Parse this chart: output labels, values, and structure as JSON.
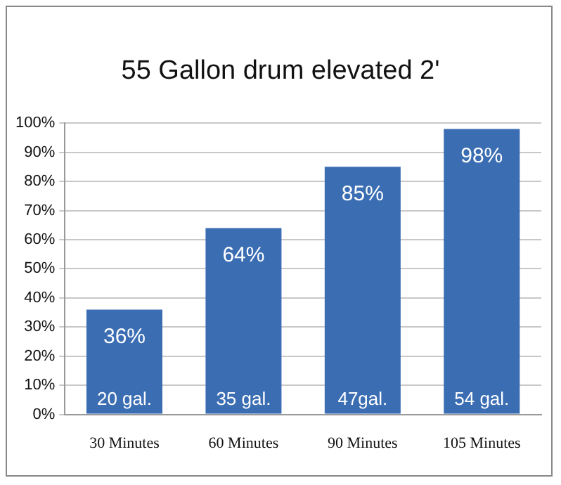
{
  "chart_data": {
    "type": "bar",
    "title": "55 Gallon drum elevated 2'",
    "categories": [
      "30 Minutes",
      "60 Minutes",
      "90 Minutes",
      "105 Minutes"
    ],
    "values": [
      36,
      64,
      85,
      98
    ],
    "color": "#3b6db3",
    "value_labels": [
      "36%",
      "64%",
      "85%",
      "98%"
    ],
    "ylim": [
      0,
      100
    ],
    "yticks": [
      {
        "value": 0,
        "label": "0%"
      },
      {
        "value": 10,
        "label": "10%"
      },
      {
        "value": 20,
        "label": "20%"
      },
      {
        "value": 30,
        "label": "30%"
      },
      {
        "value": 40,
        "label": "40%"
      },
      {
        "value": 50,
        "label": "50%"
      },
      {
        "value": 60,
        "label": "60%"
      },
      {
        "value": 70,
        "label": "70%"
      },
      {
        "value": 80,
        "label": "80%"
      },
      {
        "value": 90,
        "label": "90%"
      },
      {
        "value": 100,
        "label": "100%"
      }
    ],
    "grid": "y",
    "annotations": [
      {
        "text": "20 gal.",
        "x": "30 Minutes",
        "y": 0
      },
      {
        "text": "35 gal.",
        "x": "60 Minutes",
        "y": 0
      },
      {
        "text": "47gal.",
        "x": "90 Minutes",
        "y": 0
      },
      {
        "text": "54 gal.",
        "x": "105 Minutes",
        "y": 0
      }
    ]
  }
}
